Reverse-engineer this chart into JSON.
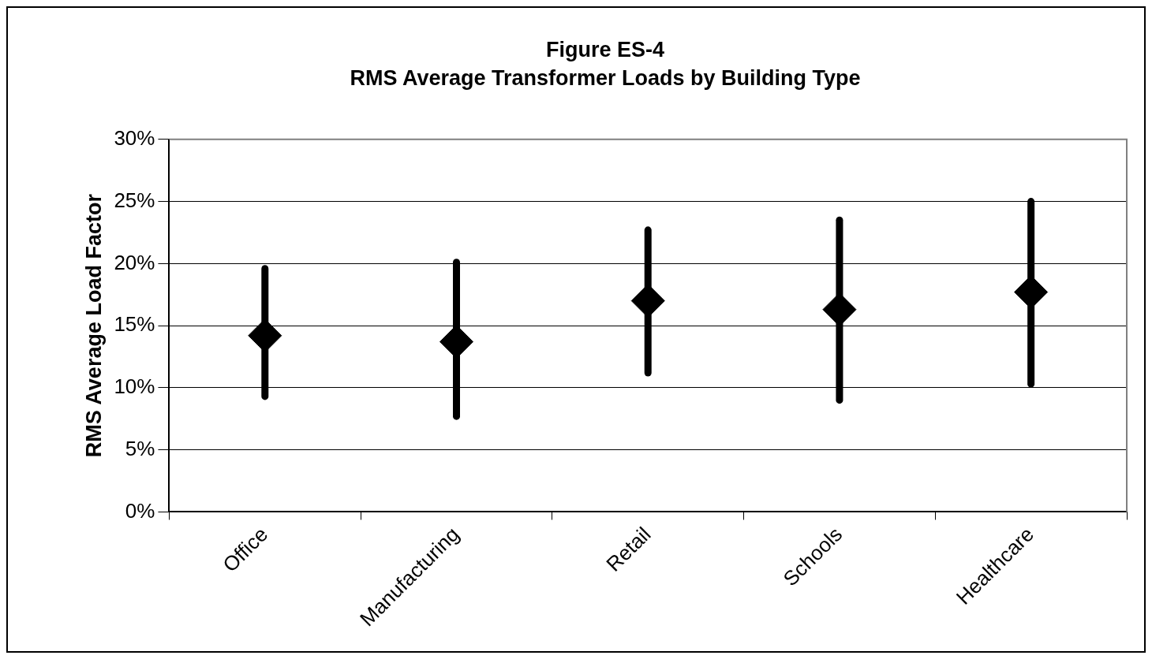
{
  "chart_data": {
    "type": "scatter",
    "title": "Figure ES-4",
    "subtitle": "RMS Average Transformer Loads by Building Type",
    "ylabel": "RMS Average Load Factor",
    "categories": [
      "Office",
      "Manufacturing",
      "Retail",
      "Schools",
      "Healthcare"
    ],
    "series": [
      {
        "color": "#000000",
        "values": [
          14.2,
          13.7,
          17.0,
          16.3,
          17.7
        ],
        "errors": [
          [
            9.3,
            19.6
          ],
          [
            7.7,
            20.1
          ],
          [
            11.2,
            22.7
          ],
          [
            9.0,
            23.5
          ],
          [
            10.3,
            25.0
          ]
        ]
      }
    ],
    "ylim": [
      0,
      30
    ],
    "yticks": [
      {
        "value": 0,
        "label": "0%"
      },
      {
        "value": 5,
        "label": "5%"
      },
      {
        "value": 10,
        "label": "10%"
      },
      {
        "value": 15,
        "label": "15%"
      },
      {
        "value": 20,
        "label": "20%"
      },
      {
        "value": 25,
        "label": "25%"
      },
      {
        "value": 30,
        "label": "30%"
      }
    ],
    "grid": "y",
    "legend": false,
    "marker": "diamond"
  }
}
